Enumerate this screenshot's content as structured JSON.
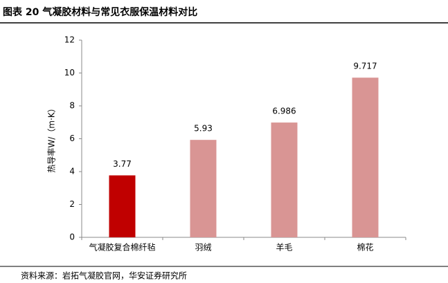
{
  "chart_data": {
    "type": "bar",
    "title": "图表 20  气凝胶材料与常见衣服保温材料对比",
    "y_label": "热导率W/（m·K）",
    "categories": [
      "气凝胶复合棉纤毡",
      "羽绒",
      "羊毛",
      "棉花"
    ],
    "values": [
      3.77,
      5.93,
      6.986,
      9.717
    ],
    "colors": [
      "#c00000",
      "#d99594",
      "#d99594",
      "#d99594"
    ],
    "ylim": [
      0,
      12
    ],
    "yticks": [
      0,
      2,
      4,
      6,
      8,
      10,
      12
    ],
    "grid": false,
    "source": "资料来源：岩拓气凝胶官网，华安证券研究所"
  }
}
